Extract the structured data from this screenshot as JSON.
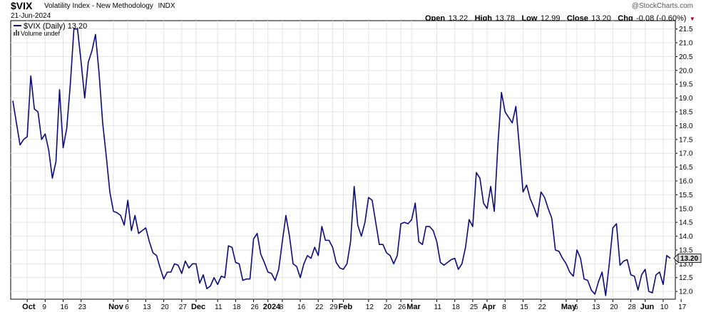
{
  "header": {
    "symbol": "$VIX",
    "name": "Volatility Index - New Methodology",
    "exchange": "INDX",
    "date": "21-Jun-2024",
    "watermark": "@StockCharts.com",
    "open_label": "Open",
    "open_value": "13.22",
    "high_label": "High",
    "high_value": "13.78",
    "low_label": "Low",
    "low_value": "12.99",
    "close_label": "Close",
    "close_value": "13.20",
    "chg_label": "Chg",
    "chg_value": "-0.08 (-0.60%)",
    "chg_direction": "down-triangle-icon"
  },
  "legend": {
    "series_label": "$VIX (Daily) 13.20",
    "volume_label": "Volume undef"
  },
  "colors": {
    "line": "#0b0b7a",
    "grid": "#e4e4e4",
    "last_box_bg": "#dcdcdc",
    "down": "#b00020"
  },
  "chart_data": {
    "type": "line",
    "series": [
      {
        "name": "$VIX (Daily)",
        "values": [
          18.9,
          18.1,
          17.3,
          17.5,
          17.6,
          19.8,
          18.6,
          18.5,
          17.5,
          17.7,
          17.1,
          16.1,
          16.7,
          19.3,
          17.2,
          17.9,
          19.5,
          21.5,
          21.5,
          20.3,
          19.0,
          20.3,
          20.7,
          21.3,
          19.9,
          18.1,
          16.9,
          15.6,
          14.9,
          14.85,
          14.75,
          14.4,
          15.3,
          14.2,
          14.75,
          14.1,
          14.2,
          14.3,
          13.8,
          13.4,
          13.3,
          12.85,
          12.45,
          12.7,
          12.7,
          13.0,
          12.95,
          12.65,
          13.1,
          12.85,
          13.0,
          13.0,
          12.3,
          12.6,
          12.1,
          12.2,
          12.5,
          12.25,
          12.55,
          12.5,
          13.65,
          13.6,
          13.05,
          13.0,
          12.4,
          12.45,
          12.45,
          13.9,
          14.1,
          13.35,
          13.05,
          12.7,
          12.65,
          12.4,
          12.8,
          13.8,
          14.75,
          14.0,
          13.0,
          12.9,
          12.5,
          13.0,
          13.3,
          13.2,
          13.6,
          13.3,
          14.35,
          13.85,
          13.85,
          13.6,
          13.05,
          12.85,
          12.8,
          13.0,
          13.8,
          15.8,
          14.4,
          14.0,
          14.5,
          15.4,
          15.3,
          14.5,
          13.7,
          13.7,
          13.4,
          13.3,
          13.0,
          13.3,
          14.45,
          14.5,
          14.45,
          14.6,
          15.2,
          13.8,
          13.7,
          14.35,
          14.35,
          14.2,
          13.8,
          13.05,
          12.95,
          13.05,
          13.15,
          13.2,
          12.8,
          13.0,
          13.6,
          14.6,
          14.35,
          16.3,
          16.1,
          15.2,
          15.0,
          15.8,
          14.9,
          17.3,
          19.2,
          18.5,
          18.3,
          18.1,
          18.7,
          17.2,
          15.6,
          15.85,
          15.35,
          15.05,
          14.7,
          15.6,
          15.4,
          15.0,
          14.65,
          13.5,
          13.45,
          13.2,
          13.0,
          12.7,
          12.55,
          13.5,
          13.2,
          12.45,
          12.4,
          12.05,
          11.9,
          12.35,
          12.7,
          11.85,
          13.0,
          14.3,
          14.45,
          12.95,
          13.1,
          13.15,
          12.6,
          12.55,
          12.05,
          12.6,
          12.8,
          12.0,
          11.95,
          12.6,
          12.7,
          12.25,
          13.3,
          13.2
        ]
      }
    ],
    "y_axis": {
      "position": "right",
      "ticks": [
        12.0,
        12.5,
        13.0,
        13.5,
        14.0,
        14.5,
        15.0,
        15.5,
        16.0,
        16.5,
        17.0,
        17.5,
        18.0,
        18.5,
        19.0,
        19.5,
        20.0,
        20.5,
        21.0,
        21.5
      ],
      "tick_labels": [
        "12.0",
        "12.5",
        "13.0",
        "13.5",
        "14.0",
        "14.5",
        "15.0",
        "15.5",
        "16.0",
        "16.5",
        "17.0",
        "17.5",
        "18.0",
        "18.5",
        "19.0",
        "19.5",
        "20.0",
        "20.5",
        "21.0",
        "21.5"
      ],
      "ylim": [
        11.72,
        21.8
      ]
    },
    "x_axis": {
      "ticks": [
        {
          "index": 4,
          "label": "Oct",
          "bold": true
        },
        {
          "index": 9,
          "label": "9",
          "bold": false
        },
        {
          "index": 14,
          "label": "16",
          "bold": false
        },
        {
          "index": 19,
          "label": "23",
          "bold": false
        },
        {
          "index": 28,
          "label": "Nov",
          "bold": true
        },
        {
          "index": 32,
          "label": "6",
          "bold": false
        },
        {
          "index": 37,
          "label": "13",
          "bold": false
        },
        {
          "index": 42,
          "label": "20",
          "bold": false
        },
        {
          "index": 47,
          "label": "27",
          "bold": false
        },
        {
          "index": 51,
          "label": "Dec",
          "bold": true
        },
        {
          "index": 57,
          "label": "11",
          "bold": false
        },
        {
          "index": 62,
          "label": "18",
          "bold": false
        },
        {
          "index": 67,
          "label": "26",
          "bold": false
        },
        {
          "index": 71,
          "label": "2024",
          "bold": true
        },
        {
          "index": 75,
          "label": "8",
          "bold": false
        },
        {
          "index": 80,
          "label": "16",
          "bold": false
        },
        {
          "index": 85,
          "label": "22",
          "bold": false
        },
        {
          "index": 89,
          "label": "29",
          "bold": false
        },
        {
          "index": 92,
          "label": "Feb",
          "bold": true
        },
        {
          "index": 99,
          "label": "12",
          "bold": false
        },
        {
          "index": 104,
          "label": "20",
          "bold": false
        },
        {
          "index": 108,
          "label": "26",
          "bold": false
        },
        {
          "index": 111,
          "label": "Mar",
          "bold": true
        },
        {
          "index": 118,
          "label": "11",
          "bold": false
        },
        {
          "index": 123,
          "label": "18",
          "bold": false
        },
        {
          "index": 128,
          "label": "25",
          "bold": false
        },
        {
          "index": 132,
          "label": "Apr",
          "bold": true
        },
        {
          "index": 137,
          "label": "8",
          "bold": false
        },
        {
          "index": 142,
          "label": "15",
          "bold": false
        },
        {
          "index": 147,
          "label": "22",
          "bold": false
        },
        {
          "index": 154,
          "label": "May",
          "bold": true
        },
        {
          "index": 157,
          "label": "6",
          "bold": false
        },
        {
          "index": 162,
          "label": "13",
          "bold": false
        },
        {
          "index": 167,
          "label": "20",
          "bold": false
        },
        {
          "index": 172,
          "label": "28",
          "bold": false
        },
        {
          "index": 176,
          "label": "Jun",
          "bold": true
        },
        {
          "index": 181,
          "label": "10",
          "bold": false
        },
        {
          "index": 186,
          "label": "17",
          "bold": false
        }
      ]
    },
    "last_value": 13.2,
    "last_value_label": "13.20",
    "grid": true,
    "legend_position": "top-left"
  }
}
